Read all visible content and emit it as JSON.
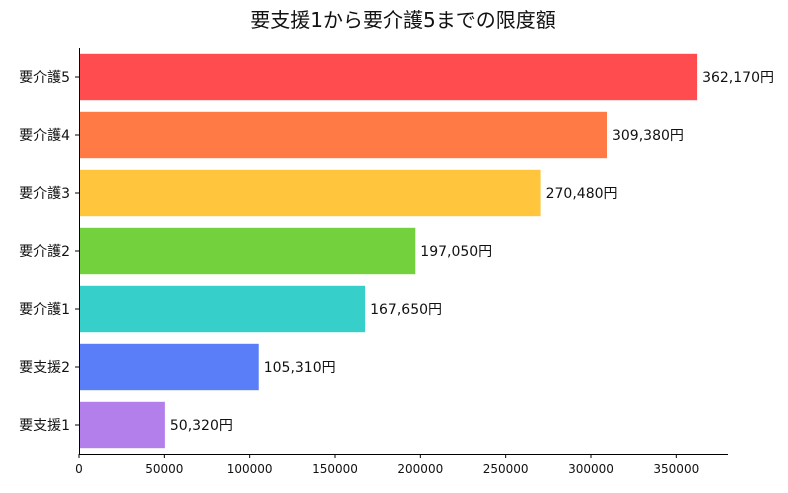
{
  "chart_data": {
    "type": "bar",
    "orientation": "horizontal",
    "title": "要支援1から要介護5までの限度額",
    "xlabel": "",
    "ylabel": "",
    "categories": [
      "要支援1",
      "要支援2",
      "要介護1",
      "要介護2",
      "要介護3",
      "要介護4",
      "要介護5"
    ],
    "values": [
      50320,
      105310,
      167650,
      197050,
      270480,
      309380,
      362170
    ],
    "data_labels": [
      "50,320円",
      "105,310円",
      "167,650円",
      "197,050円",
      "270,480円",
      "309,380円",
      "362,170円"
    ],
    "colors": [
      "#b37feb",
      "#597ef7",
      "#36cfc9",
      "#73d13d",
      "#ffc53d",
      "#ff7a45",
      "#ff4d4f"
    ],
    "xlim": [
      0,
      380280
    ],
    "xticks": [
      0,
      50000,
      100000,
      150000,
      200000,
      250000,
      300000,
      350000
    ],
    "xtick_labels": [
      "0",
      "50000",
      "100000",
      "150000",
      "200000",
      "250000",
      "300000",
      "350000"
    ],
    "grid": false
  }
}
